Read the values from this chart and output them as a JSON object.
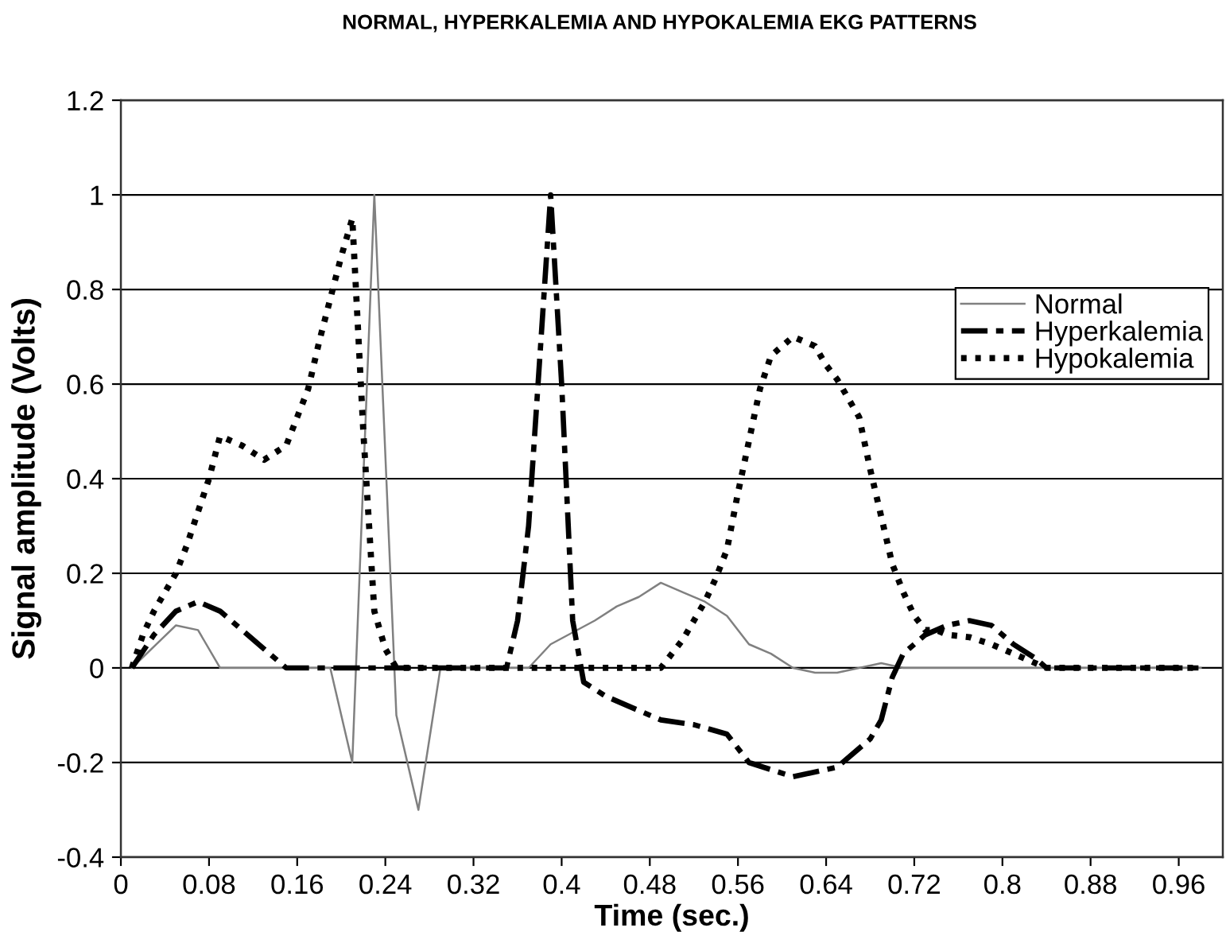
{
  "chart_data": {
    "type": "line",
    "title": "NORMAL, HYPERKALEMIA AND HYPOKALEMIA EKG PATTERNS",
    "xlabel": "Time (sec.)",
    "ylabel": "Signal amplitude (Volts)",
    "xlim": [
      0,
      1
    ],
    "xticks": [
      0,
      0.08,
      0.16,
      0.24,
      0.32,
      0.4,
      0.48,
      0.56,
      0.64,
      0.72,
      0.8,
      0.88,
      0.96
    ],
    "ylim": [
      -0.4,
      1.2
    ],
    "yticks": [
      -0.4,
      -0.2,
      0,
      0.2,
      0.4,
      0.6,
      0.8,
      1,
      1.2
    ],
    "grid": "y",
    "legend": "right",
    "series": [
      {
        "name": "Normal",
        "color": "#808080",
        "line_style": "solid",
        "x": [
          0.01,
          0.05,
          0.07,
          0.09,
          0.19,
          0.21,
          0.23,
          0.25,
          0.27,
          0.29,
          0.37,
          0.39,
          0.43,
          0.45,
          0.47,
          0.49,
          0.51,
          0.53,
          0.55,
          0.57,
          0.59,
          0.61,
          0.63,
          0.65,
          0.67,
          0.69,
          0.71,
          0.98
        ],
        "values": [
          0,
          0.09,
          0.08,
          0,
          0,
          -0.2,
          1,
          -0.1,
          -0.3,
          0,
          0,
          0.05,
          0.1,
          0.13,
          0.15,
          0.18,
          0.16,
          0.14,
          0.11,
          0.05,
          0.03,
          0,
          -0.01,
          -0.01,
          0,
          0.01,
          0,
          0
        ]
      },
      {
        "name": "Hyperkalemia",
        "color": "#000000",
        "line_style": "dashed",
        "x": [
          0.01,
          0.03,
          0.05,
          0.07,
          0.09,
          0.11,
          0.13,
          0.15,
          0.35,
          0.36,
          0.37,
          0.38,
          0.39,
          0.4,
          0.41,
          0.42,
          0.44,
          0.46,
          0.49,
          0.52,
          0.55,
          0.57,
          0.61,
          0.65,
          0.68,
          0.69,
          0.7,
          0.71,
          0.73,
          0.75,
          0.77,
          0.79,
          0.81,
          0.83,
          0.84,
          0.98
        ],
        "values": [
          0,
          0.07,
          0.12,
          0.14,
          0.12,
          0.08,
          0.04,
          0,
          0,
          0.1,
          0.3,
          0.65,
          1,
          0.6,
          0.1,
          -0.03,
          -0.06,
          -0.08,
          -0.11,
          -0.12,
          -0.14,
          -0.2,
          -0.23,
          -0.21,
          -0.15,
          -0.11,
          -0.02,
          0.03,
          0.07,
          0.09,
          0.1,
          0.09,
          0.05,
          0.02,
          0,
          0
        ]
      },
      {
        "name": "Hypokalemia",
        "color": "#000000",
        "line_style": "dotted",
        "x": [
          0.01,
          0.02,
          0.03,
          0.04,
          0.05,
          0.06,
          0.07,
          0.08,
          0.09,
          0.11,
          0.13,
          0.15,
          0.16,
          0.17,
          0.18,
          0.19,
          0.2,
          0.21,
          0.22,
          0.23,
          0.24,
          0.25,
          0.49,
          0.5,
          0.51,
          0.52,
          0.53,
          0.54,
          0.55,
          0.56,
          0.57,
          0.58,
          0.59,
          0.6,
          0.61,
          0.62,
          0.63,
          0.64,
          0.65,
          0.66,
          0.67,
          0.68,
          0.69,
          0.7,
          0.71,
          0.72,
          0.73,
          0.74,
          0.75,
          0.77,
          0.79,
          0.81,
          0.83,
          0.84,
          0.98
        ],
        "values": [
          0,
          0.07,
          0.12,
          0.16,
          0.2,
          0.26,
          0.33,
          0.4,
          0.49,
          0.47,
          0.44,
          0.47,
          0.53,
          0.59,
          0.69,
          0.78,
          0.87,
          0.95,
          0.5,
          0.12,
          0.04,
          0,
          0,
          0.03,
          0.06,
          0.1,
          0.14,
          0.19,
          0.25,
          0.37,
          0.48,
          0.59,
          0.66,
          0.68,
          0.7,
          0.69,
          0.68,
          0.64,
          0.61,
          0.57,
          0.53,
          0.42,
          0.32,
          0.22,
          0.16,
          0.11,
          0.08,
          0.08,
          0.07,
          0.065,
          0.05,
          0.03,
          0.01,
          0,
          0
        ]
      }
    ]
  }
}
